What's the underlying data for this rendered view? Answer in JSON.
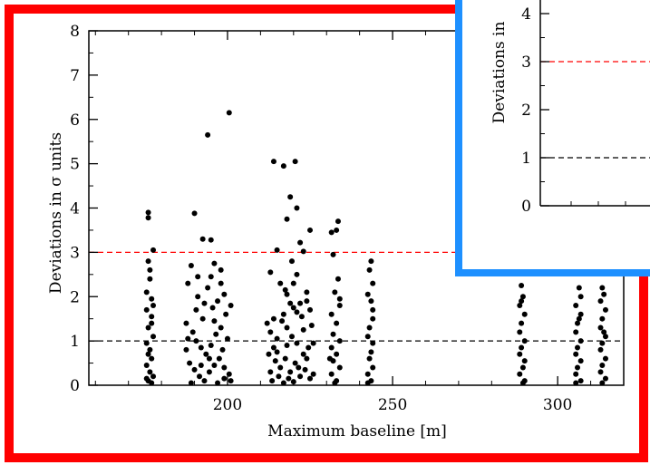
{
  "frames": {
    "main_border_color": "#ff0000",
    "inset_border_color": "#1e90ff"
  },
  "chart_data": [
    {
      "type": "scatter",
      "panel": "main",
      "xlabel": "Maximum baseline [m]",
      "ylabel": "Deviations in σ units",
      "xlim": [
        158,
        320
      ],
      "ylim": [
        0,
        8
      ],
      "x_ticks": [
        200,
        250,
        300
      ],
      "y_ticks": [
        0,
        1,
        2,
        3,
        4,
        5,
        6,
        7,
        8
      ],
      "reference_lines": [
        {
          "y": 1,
          "color": "#000000",
          "style": "dashed"
        },
        {
          "y": 3,
          "color": "#ff0000",
          "style": "dashed"
        }
      ],
      "point_color": "#000000",
      "series": [
        {
          "values": [
            [
              176,
              3.9
            ],
            [
              176,
              3.78
            ],
            [
              177.5,
              3.05
            ],
            [
              176,
              2.8
            ],
            [
              176.5,
              2.4
            ],
            [
              177,
              1.95
            ],
            [
              175.5,
              1.7
            ],
            [
              177,
              1.55
            ],
            [
              176,
              1.3
            ],
            [
              177.5,
              1.1
            ],
            [
              175.5,
              0.95
            ],
            [
              176.5,
              0.8
            ],
            [
              177,
              0.6
            ],
            [
              175.5,
              0.45
            ],
            [
              176.5,
              0.3
            ],
            [
              177.5,
              0.2
            ],
            [
              176,
              0.1
            ],
            [
              177,
              0.05
            ],
            [
              175.5,
              2.1
            ],
            [
              177.5,
              1.8
            ],
            [
              176,
              0.7
            ],
            [
              177,
              1.4
            ],
            [
              175.5,
              0.15
            ],
            [
              176.5,
              2.6
            ],
            [
              190,
              3.88
            ],
            [
              194,
              5.65
            ],
            [
              200.5,
              6.15
            ],
            [
              192.5,
              3.3
            ],
            [
              195,
              3.28
            ],
            [
              196,
              2.75
            ],
            [
              198,
              2.6
            ],
            [
              189,
              2.7
            ],
            [
              188,
              2.3
            ],
            [
              191,
              2.0
            ],
            [
              193,
              1.85
            ],
            [
              195.5,
              1.75
            ],
            [
              197,
              1.9
            ],
            [
              199,
              2.05
            ],
            [
              199.5,
              1.6
            ],
            [
              187.5,
              1.4
            ],
            [
              189.5,
              1.2
            ],
            [
              190.5,
              1.0
            ],
            [
              192,
              0.85
            ],
            [
              193.5,
              0.7
            ],
            [
              195,
              0.9
            ],
            [
              196.5,
              1.15
            ],
            [
              198,
              1.3
            ],
            [
              200,
              1.05
            ],
            [
              188.5,
              0.5
            ],
            [
              190,
              0.35
            ],
            [
              191.5,
              0.2
            ],
            [
              193,
              0.1
            ],
            [
              194.5,
              0.3
            ],
            [
              196,
              0.45
            ],
            [
              197.5,
              0.6
            ],
            [
              199,
              0.4
            ],
            [
              200.5,
              0.25
            ],
            [
              201,
              0.1
            ],
            [
              187.5,
              0.8
            ],
            [
              192.5,
              1.5
            ],
            [
              194,
              2.2
            ],
            [
              198.5,
              0.8
            ],
            [
              190.5,
              1.7
            ],
            [
              196,
              1.45
            ],
            [
              201,
              1.8
            ],
            [
              188,
              1.05
            ],
            [
              194.5,
              0.6
            ],
            [
              192,
              0.45
            ],
            [
              199,
              0.15
            ],
            [
              197,
              0.05
            ],
            [
              189,
              0.05
            ],
            [
              195,
              2.45
            ],
            [
              191,
              2.45
            ],
            [
              198,
              2.3
            ],
            [
              214,
              5.05
            ],
            [
              217,
              4.95
            ],
            [
              220.5,
              5.05
            ],
            [
              219,
              4.25
            ],
            [
              221,
              4.0
            ],
            [
              218,
              3.75
            ],
            [
              225,
              3.5
            ],
            [
              222,
              3.22
            ],
            [
              215,
              3.05
            ],
            [
              223,
              3.02
            ],
            [
              213,
              2.55
            ],
            [
              219.5,
              2.8
            ],
            [
              221,
              2.5
            ],
            [
              216,
              2.3
            ],
            [
              218,
              2.05
            ],
            [
              224,
              2.1
            ],
            [
              214,
              1.5
            ],
            [
              217,
              1.6
            ],
            [
              220,
              1.75
            ],
            [
              222,
              1.85
            ],
            [
              225,
              1.7
            ],
            [
              213,
              1.2
            ],
            [
              215,
              1.05
            ],
            [
              218,
              1.3
            ],
            [
              219.5,
              1.1
            ],
            [
              221,
              0.95
            ],
            [
              223,
              1.25
            ],
            [
              224.5,
              0.85
            ],
            [
              212.5,
              0.7
            ],
            [
              214.5,
              0.55
            ],
            [
              216,
              0.4
            ],
            [
              217.5,
              0.6
            ],
            [
              219,
              0.3
            ],
            [
              220.5,
              0.5
            ],
            [
              222,
              0.2
            ],
            [
              223.5,
              0.35
            ],
            [
              225,
              0.15
            ],
            [
              213.5,
              0.1
            ],
            [
              215.5,
              0.2
            ],
            [
              217,
              0.05
            ],
            [
              218.5,
              0.15
            ],
            [
              220,
              0.08
            ],
            [
              221.5,
              0.4
            ],
            [
              224,
              0.6
            ],
            [
              216.5,
              1.45
            ],
            [
              222.5,
              1.55
            ],
            [
              214,
              0.85
            ],
            [
              226,
              0.95
            ],
            [
              212,
              1.4
            ],
            [
              219,
              1.85
            ],
            [
              223,
              0.7
            ],
            [
              225.5,
              1.35
            ],
            [
              217.5,
              2.15
            ],
            [
              220,
              2.3
            ],
            [
              215,
              0.75
            ],
            [
              221,
              1.65
            ],
            [
              224,
              1.9
            ],
            [
              213,
              0.3
            ],
            [
              218,
              0.9
            ],
            [
              226,
              0.25
            ],
            [
              233.5,
              3.7
            ],
            [
              233,
              3.5
            ],
            [
              231.5,
              3.45
            ],
            [
              232,
              2.95
            ],
            [
              233.5,
              2.4
            ],
            [
              232.5,
              2.1
            ],
            [
              234,
              1.8
            ],
            [
              231.5,
              1.6
            ],
            [
              233,
              1.4
            ],
            [
              232,
              1.15
            ],
            [
              234,
              1.0
            ],
            [
              231.5,
              0.85
            ],
            [
              233,
              0.7
            ],
            [
              232,
              0.55
            ],
            [
              234,
              0.4
            ],
            [
              231.5,
              0.25
            ],
            [
              233,
              0.1
            ],
            [
              232.5,
              0.05
            ],
            [
              234,
              1.95
            ],
            [
              231,
              0.6
            ],
            [
              243.5,
              2.8
            ],
            [
              243,
              2.6
            ],
            [
              244,
              2.3
            ],
            [
              242.5,
              2.05
            ],
            [
              243.5,
              1.9
            ],
            [
              244,
              1.5
            ],
            [
              243,
              1.3
            ],
            [
              242.5,
              1.1
            ],
            [
              244,
              0.95
            ],
            [
              243.5,
              0.75
            ],
            [
              243,
              0.6
            ],
            [
              244,
              0.4
            ],
            [
              242.5,
              0.25
            ],
            [
              243.5,
              0.1
            ],
            [
              244,
              1.7
            ],
            [
              242.5,
              0.05
            ],
            [
              289,
              2.25
            ],
            [
              289.5,
              2.0
            ],
            [
              288.5,
              1.8
            ],
            [
              290,
              1.6
            ],
            [
              289,
              1.4
            ],
            [
              288.5,
              1.2
            ],
            [
              290,
              1.0
            ],
            [
              289,
              0.85
            ],
            [
              288.5,
              0.7
            ],
            [
              290,
              0.55
            ],
            [
              289.5,
              0.4
            ],
            [
              288.5,
              0.25
            ],
            [
              290,
              0.1
            ],
            [
              289,
              1.9
            ],
            [
              289.5,
              0.05
            ],
            [
              306.5,
              2.2
            ],
            [
              307,
              2.0
            ],
            [
              305.5,
              1.8
            ],
            [
              307,
              1.6
            ],
            [
              306,
              1.4
            ],
            [
              305.5,
              1.2
            ],
            [
              307,
              1.0
            ],
            [
              306,
              0.85
            ],
            [
              305.5,
              0.7
            ],
            [
              307,
              0.55
            ],
            [
              306,
              0.4
            ],
            [
              305.5,
              0.25
            ],
            [
              307,
              0.1
            ],
            [
              306.5,
              1.5
            ],
            [
              305.5,
              0.05
            ],
            [
              313.5,
              2.2
            ],
            [
              314,
              2.05
            ],
            [
              313,
              1.9
            ],
            [
              314.5,
              1.7
            ],
            [
              313.5,
              1.5
            ],
            [
              313,
              1.3
            ],
            [
              314.5,
              1.1
            ],
            [
              313.5,
              0.95
            ],
            [
              313,
              0.8
            ],
            [
              314.5,
              0.6
            ],
            [
              313.5,
              0.45
            ],
            [
              313,
              0.3
            ],
            [
              314.5,
              0.15
            ],
            [
              313.5,
              0.05
            ],
            [
              314,
              1.2
            ]
          ]
        }
      ]
    },
    {
      "type": "scatter",
      "panel": "inset",
      "ylabel": "Deviations in",
      "ylim": [
        0,
        4
      ],
      "y_ticks": [
        0,
        1,
        2,
        3,
        4
      ],
      "reference_lines": [
        {
          "y": 1,
          "color": "#000000",
          "style": "dashed"
        },
        {
          "y": 3,
          "color": "#ff0000",
          "style": "dashed"
        }
      ]
    }
  ]
}
